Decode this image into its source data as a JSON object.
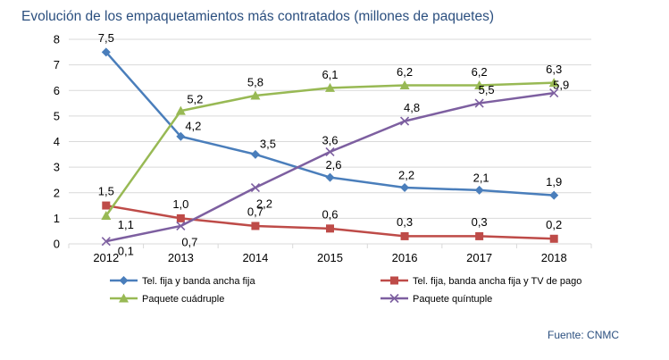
{
  "title": "Evolución de los empaquetamientos más contratados (millones de paquetes)",
  "source": "Fuente: CNMC",
  "chart_data": {
    "type": "line",
    "title": "Evolución de los empaquetamientos más contratados (millones de paquetes)",
    "xlabel": "",
    "ylabel": "",
    "categories": [
      "2012",
      "2013",
      "2014",
      "2015",
      "2016",
      "2017",
      "2018"
    ],
    "ylim": [
      0,
      8
    ],
    "yticks": [
      "0",
      "1",
      "2",
      "3",
      "4",
      "5",
      "6",
      "7",
      "8"
    ],
    "grid": true,
    "legend_position": "bottom",
    "series": [
      {
        "name": "Tel. fija y banda ancha fija",
        "color": "#4a7ebb",
        "marker": "diamond",
        "values": [
          7.5,
          4.2,
          3.5,
          2.6,
          2.2,
          2.1,
          1.9
        ],
        "labels": [
          "7,5",
          "4,2",
          "3,5",
          "2,6",
          "2,2",
          "2,1",
          "1,9"
        ]
      },
      {
        "name": "Tel. fija, banda ancha fija y TV de pago",
        "color": "#be4b48",
        "marker": "square",
        "values": [
          1.5,
          1.0,
          0.7,
          0.6,
          0.3,
          0.3,
          0.2
        ],
        "labels": [
          "1,5",
          "1,0",
          "0,7",
          "0,6",
          "0,3",
          "0,3",
          "0,2"
        ]
      },
      {
        "name": "Paquete cuádruple",
        "color": "#98b954",
        "marker": "triangle",
        "values": [
          1.1,
          5.2,
          5.8,
          6.1,
          6.2,
          6.2,
          6.3
        ],
        "labels": [
          "1,1",
          "5,2",
          "5,8",
          "6,1",
          "6,2",
          "6,2",
          "6,3"
        ]
      },
      {
        "name": "Paquete quíntuple",
        "color": "#7d5fa0",
        "marker": "x",
        "values": [
          0.1,
          0.7,
          2.2,
          3.6,
          4.8,
          5.5,
          5.9
        ],
        "labels": [
          "0,1",
          "0,7",
          "2,2",
          "3,6",
          "4,8",
          "5,5",
          "5,9"
        ]
      }
    ]
  }
}
